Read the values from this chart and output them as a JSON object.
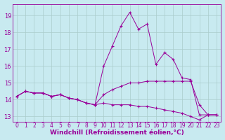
{
  "background_color": "#c8eaf0",
  "grid_color": "#aacccc",
  "line_color": "#990099",
  "marker_color": "#990099",
  "xlabel": "Windchill (Refroidissement éolien,°C)",
  "xlabel_fontsize": 6.5,
  "xtick_fontsize": 5.5,
  "ytick_fontsize": 6.0,
  "xlim": [
    -0.5,
    23.5
  ],
  "ylim": [
    12.7,
    19.7
  ],
  "yticks": [
    13,
    14,
    15,
    16,
    17,
    18,
    19
  ],
  "xticks": [
    0,
    1,
    2,
    3,
    4,
    5,
    6,
    7,
    8,
    9,
    10,
    11,
    12,
    13,
    14,
    15,
    16,
    17,
    18,
    19,
    20,
    21,
    22,
    23
  ],
  "series": [
    {
      "x": [
        0,
        1,
        2,
        3,
        4,
        5,
        6,
        7,
        8,
        9,
        10,
        11,
        12,
        13,
        14,
        15,
        16,
        17,
        18,
        19,
        20,
        21,
        22,
        23
      ],
      "y": [
        14.2,
        14.5,
        14.4,
        14.4,
        14.2,
        14.3,
        14.1,
        14.0,
        13.8,
        13.7,
        16.0,
        17.2,
        18.4,
        19.2,
        18.2,
        18.5,
        16.1,
        16.8,
        16.4,
        15.3,
        15.2,
        13.1,
        13.1,
        13.1
      ]
    },
    {
      "x": [
        0,
        1,
        2,
        3,
        4,
        5,
        6,
        7,
        8,
        9,
        10,
        11,
        12,
        13,
        14,
        15,
        16,
        17,
        18,
        19,
        20,
        21,
        22,
        23
      ],
      "y": [
        14.2,
        14.5,
        14.4,
        14.4,
        14.2,
        14.3,
        14.1,
        14.0,
        13.8,
        13.7,
        14.3,
        14.6,
        14.8,
        15.0,
        15.0,
        15.1,
        15.1,
        15.1,
        15.1,
        15.1,
        15.1,
        13.7,
        13.1,
        13.1
      ]
    },
    {
      "x": [
        0,
        1,
        2,
        3,
        4,
        5,
        6,
        7,
        8,
        9,
        10,
        11,
        12,
        13,
        14,
        15,
        16,
        17,
        18,
        19,
        20,
        21,
        22,
        23
      ],
      "y": [
        14.2,
        14.5,
        14.4,
        14.4,
        14.2,
        14.3,
        14.1,
        14.0,
        13.8,
        13.7,
        13.8,
        13.7,
        13.7,
        13.7,
        13.6,
        13.6,
        13.5,
        13.4,
        13.3,
        13.2,
        13.0,
        12.8,
        13.1,
        13.1
      ]
    }
  ]
}
